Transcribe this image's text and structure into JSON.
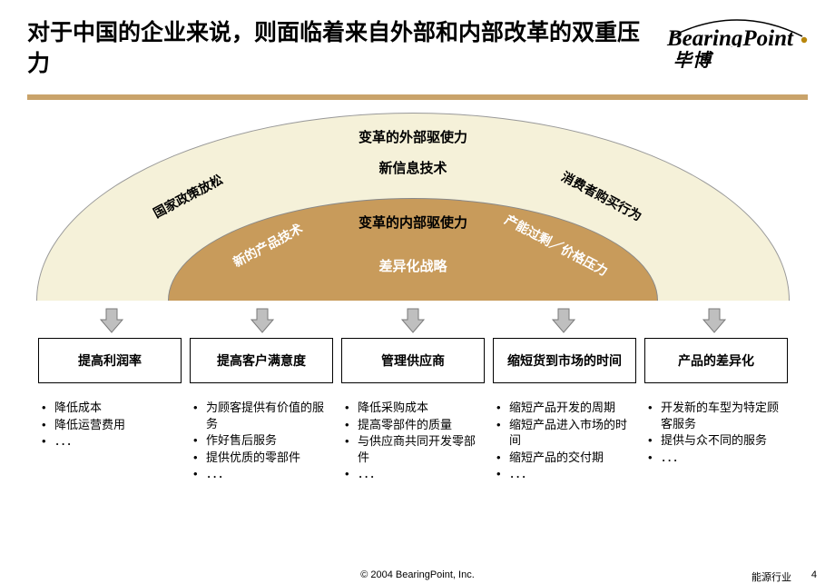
{
  "title": "对于中国的企业来说，则面临着来自外部和内部改革的双重压力",
  "logo": {
    "name": "BearingPoint",
    "sub": "毕博",
    "dot_color": "#b8860b"
  },
  "underline_color": "#c9a36a",
  "outer_arc": {
    "bg": "#f5f1d9",
    "title": "变革的外部驱使力",
    "sub": "新信息技术",
    "left": "国家政策放松",
    "right": "消费者购买行为"
  },
  "inner_arc": {
    "bg": "#c89b5b",
    "title": "变革的内部驱使力",
    "sub": "差异化战略",
    "left": "新的产品技术",
    "right": "产能过剩／价格压力"
  },
  "arrow": {
    "fill": "#bfbfbf",
    "stroke": "#7a7a7a"
  },
  "columns": [
    {
      "box": "提高利润率",
      "bullets": [
        "降低成本",
        "降低运营费用",
        "．．．"
      ]
    },
    {
      "box": "提高客户满意度",
      "bullets": [
        "为顾客提供有价值的服务",
        "作好售后服务",
        "提供优质的零部件",
        "．．．"
      ]
    },
    {
      "box": "管理供应商",
      "bullets": [
        "降低采购成本",
        "提高零部件的质量",
        "与供应商共同开发零部件",
        "．．．"
      ]
    },
    {
      "box": "缩短货到市场的时间",
      "bullets": [
        "缩短产品开发的周期",
        "缩短产品进入市场的时间",
        "缩短产品的交付期",
        "．．．"
      ]
    },
    {
      "box": "产品的差异化",
      "bullets": [
        "开发新的车型为特定顾客服务",
        "提供与众不同的服务",
        "．．．"
      ]
    }
  ],
  "footer": {
    "copyright": "© 2004 BearingPoint, Inc.",
    "industry": "能源行业",
    "page": "4"
  }
}
